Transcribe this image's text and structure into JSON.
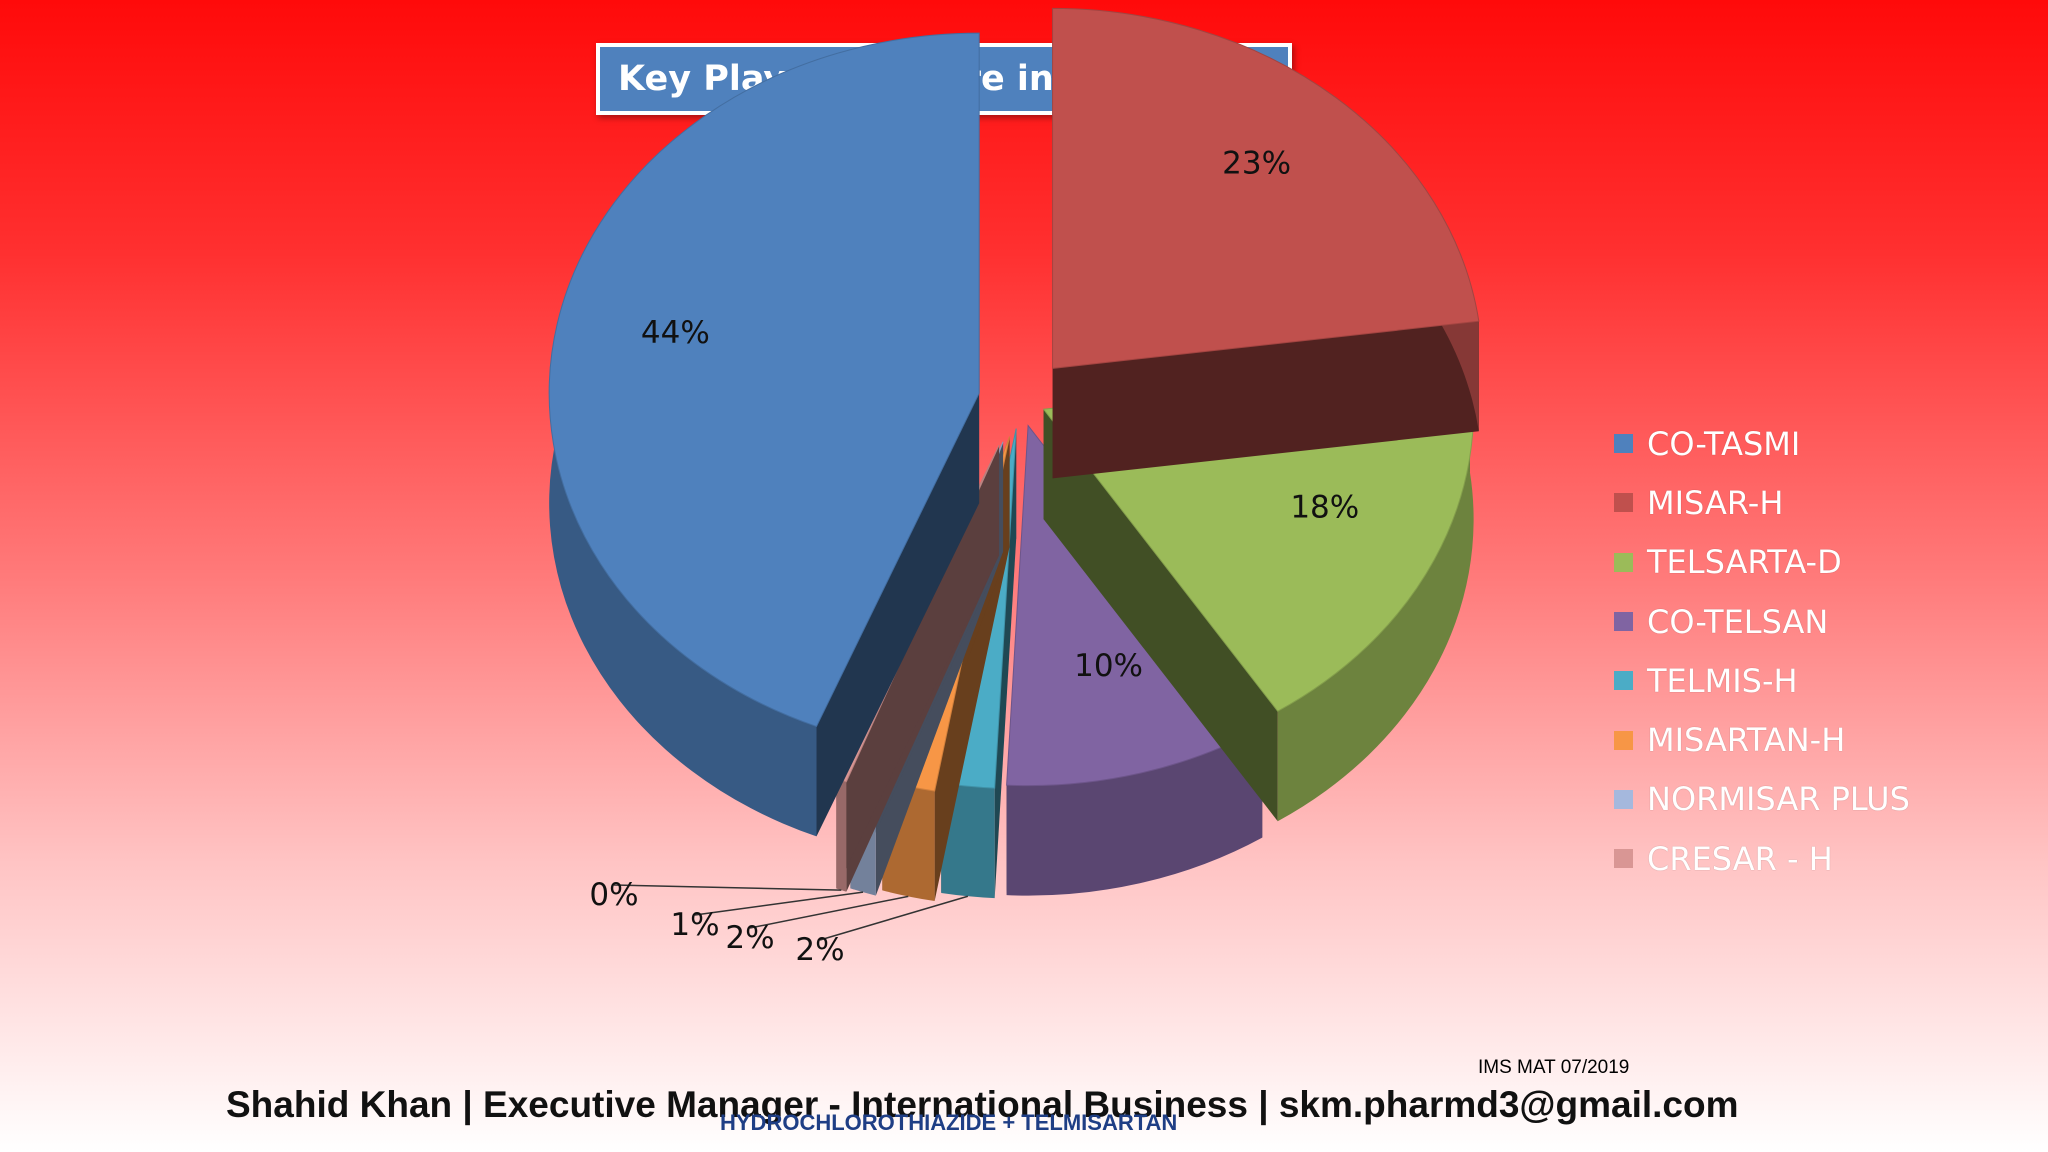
{
  "title": "Key Players – Share in Value",
  "footer": {
    "source": "IMS MAT 07/2019",
    "credit": "Shahid Khan | Executive Manager - International Business | skm.pharmd3@gmail.com",
    "subtitle": "HYDROCHLOROTHIAZIDE + TELMISARTAN"
  },
  "chart_data": {
    "type": "pie",
    "title": "Key Players – Share in Value",
    "style": "3d-exploded",
    "legend_position": "right",
    "categories": [
      "CO-TASMI",
      "MISAR-H",
      "TELSARTA-D",
      "CO-TELSAN",
      "TELMIS-H",
      "MISARTAN-H",
      "NORMISAR PLUS",
      "CRESAR - H"
    ],
    "values": [
      44,
      23,
      18,
      10,
      2,
      2,
      1,
      0
    ],
    "labels": [
      "44%",
      "23%",
      "18%",
      "10%",
      "2%",
      "2%",
      "1%",
      "0%"
    ],
    "colors": [
      "#4f81bd",
      "#c0504d",
      "#9bbb59",
      "#8064a2",
      "#4bacc6",
      "#f79646",
      "#a5b8dd",
      "#d99694"
    ]
  }
}
